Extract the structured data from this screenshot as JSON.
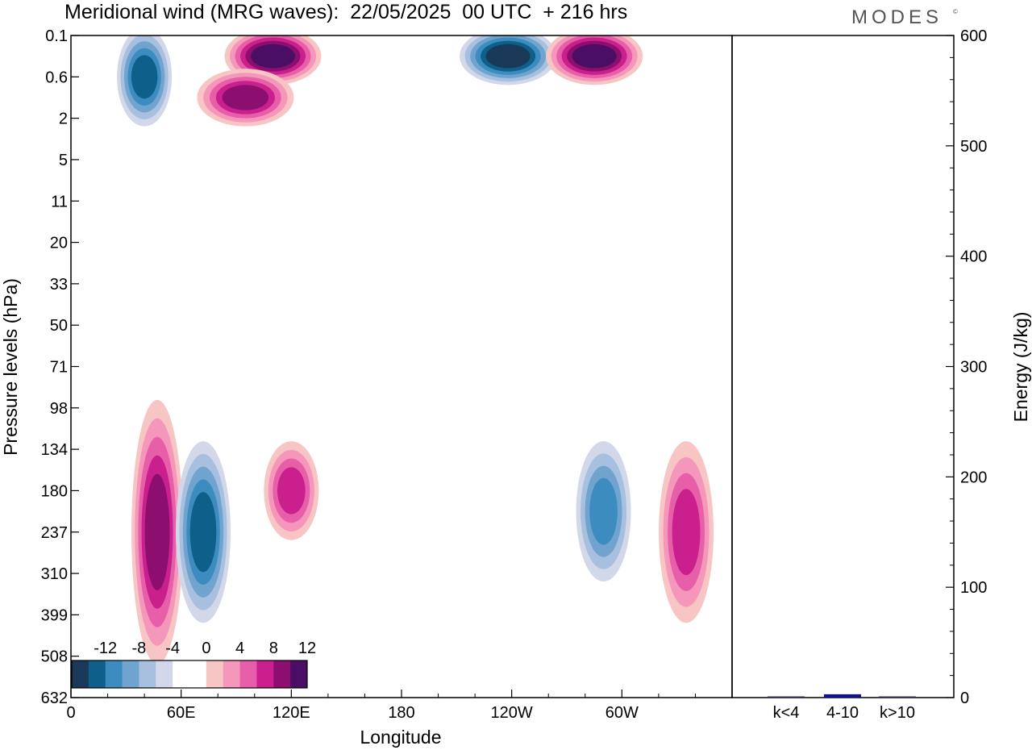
{
  "header": {
    "title": "Meridional wind (MRG waves):  22/05/2025  00 UTC  + 216 hrs",
    "brand": "MODES",
    "brand_mark": "©"
  },
  "colors": {
    "negative": [
      "#1a3858",
      "#0e5f8a",
      "#3d8cbf",
      "#70a4ce",
      "#a8c0df",
      "#d2d7ea"
    ],
    "zero": "#ffffff",
    "positive": [
      "#f8c5c5",
      "#f497ba",
      "#e85fa9",
      "#c9208d",
      "#8c0e6f",
      "#4b0e65"
    ],
    "bar_fill": "#1010a0"
  },
  "chart_data": [
    {
      "type": "heatmap",
      "title": "Meridional wind (MRG waves):  22/05/2025  00 UTC  + 216 hrs",
      "xlabel": "Longitude",
      "ylabel": "Pressure levels (hPa)",
      "x_ticks": [
        "0",
        "60E",
        "120E",
        "180",
        "120W",
        "60W"
      ],
      "x_tick_degrees": [
        0,
        60,
        120,
        180,
        240,
        300
      ],
      "xlim": [
        0,
        360
      ],
      "y_ticks": [
        "0.1",
        "0.6",
        "2",
        "5",
        "11",
        "20",
        "33",
        "50",
        "71",
        "98",
        "134",
        "180",
        "237",
        "310",
        "399",
        "508",
        "632"
      ],
      "colorbar": {
        "labels": [
          "-12",
          "-8",
          "-4",
          "0",
          "4",
          "8",
          "12"
        ],
        "levels": [
          -14,
          -12,
          -10,
          -8,
          -6,
          -4,
          -2,
          2,
          4,
          6,
          8,
          10,
          12,
          14
        ]
      },
      "features": [
        {
          "lon": 47,
          "p_from": "98",
          "p_to": "508",
          "peak": 11
        },
        {
          "lon": 72,
          "p_from": "134",
          "p_to": "399",
          "peak": -10
        },
        {
          "lon": 120,
          "p_from": "134",
          "p_to": "237",
          "peak": 9
        },
        {
          "lon": 290,
          "p_from": "134",
          "p_to": "310",
          "peak": -8
        },
        {
          "lon": 335,
          "p_from": "134",
          "p_to": "399",
          "peak": 9
        },
        {
          "lon": 110,
          "p_from": "0.1",
          "p_to": "0.6",
          "peak": 13
        },
        {
          "lon": 95,
          "p_from": "0.6",
          "p_to": "2",
          "peak": 10
        },
        {
          "lon": 238,
          "p_from": "0.1",
          "p_to": "0.6",
          "peak": -12
        },
        {
          "lon": 285,
          "p_from": "0.1",
          "p_to": "0.6",
          "peak": 13
        },
        {
          "lon": 40,
          "p_from": "0.1",
          "p_to": "2",
          "peak": -10
        }
      ]
    },
    {
      "type": "bar",
      "ylabel": "Energy (J/kg)",
      "categories": [
        "k<4",
        "4-10",
        "k>10"
      ],
      "values": [
        0.5,
        3,
        0.5
      ],
      "ylim": [
        0,
        600
      ],
      "y_ticks": [
        "0",
        "100",
        "200",
        "300",
        "400",
        "500",
        "600"
      ]
    }
  ]
}
